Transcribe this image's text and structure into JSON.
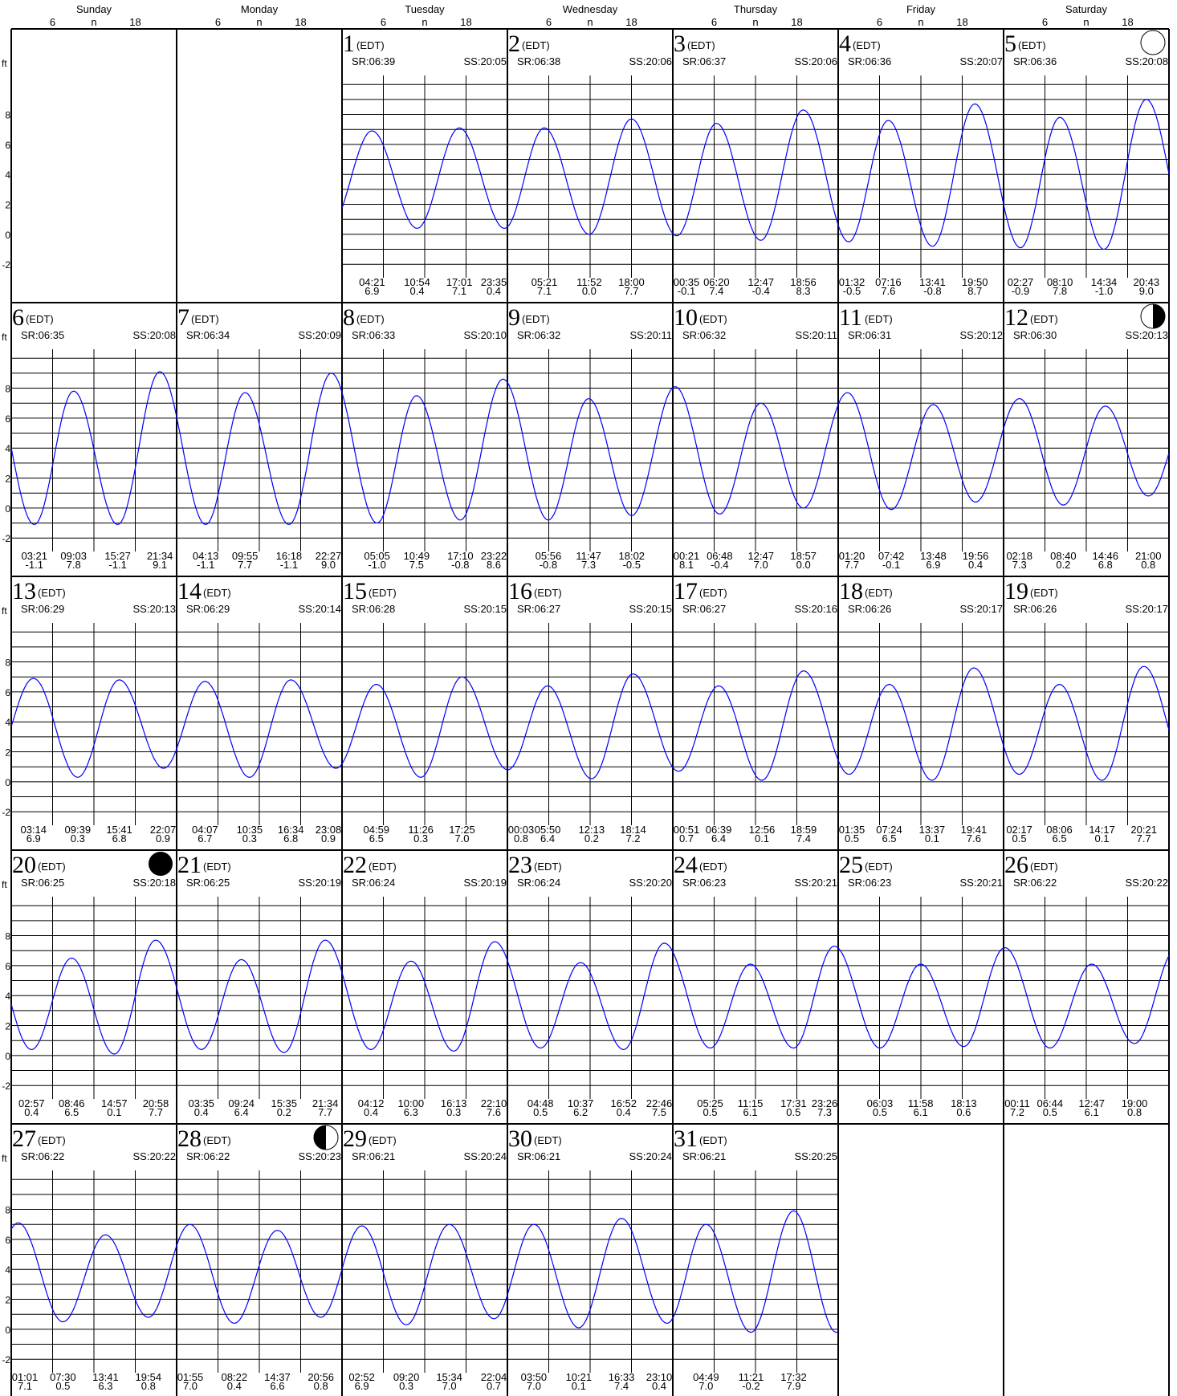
{
  "weekdays": [
    "Sunday",
    "Monday",
    "Tuesday",
    "Wednesday",
    "Thursday",
    "Friday",
    "Saturday"
  ],
  "hour_ticks": [
    "6",
    "n",
    "18"
  ],
  "units": "ft",
  "y_ticks": [
    "8",
    "6",
    "4",
    "2",
    "0",
    "-2"
  ],
  "colors": {
    "curve": "#0000ff",
    "grid": "#000000",
    "moon": "#000000"
  },
  "chart_data": {
    "type": "line",
    "xlabel": "",
    "ylabel": "ft",
    "ylim": [
      -2,
      10
    ],
    "first_weekday_index": 2,
    "grid": true,
    "days": [
      {
        "day": "1",
        "tz": "(EDT)",
        "sr": "SR:06:39",
        "ss": "SS:20:05",
        "moon": "",
        "tides": [
          {
            "t": "04:21",
            "h": "6.9"
          },
          {
            "t": "10:54",
            "h": "0.4"
          },
          {
            "t": "17:01",
            "h": "7.1"
          },
          {
            "t": "23:35",
            "h": "0.4"
          }
        ]
      },
      {
        "day": "2",
        "tz": "(EDT)",
        "sr": "SR:06:38",
        "ss": "SS:20:06",
        "moon": "",
        "tides": [
          {
            "t": "05:21",
            "h": "7.1"
          },
          {
            "t": "11:52",
            "h": "0.0"
          },
          {
            "t": "18:00",
            "h": "7.7"
          }
        ]
      },
      {
        "day": "3",
        "tz": "(EDT)",
        "sr": "SR:06:37",
        "ss": "SS:20:06",
        "moon": "",
        "tides": [
          {
            "t": "00:35",
            "h": "-0.1"
          },
          {
            "t": "06:20",
            "h": "7.4"
          },
          {
            "t": "12:47",
            "h": "-0.4"
          },
          {
            "t": "18:56",
            "h": "8.3"
          }
        ]
      },
      {
        "day": "4",
        "tz": "(EDT)",
        "sr": "SR:06:36",
        "ss": "SS:20:07",
        "moon": "",
        "tides": [
          {
            "t": "01:32",
            "h": "-0.5"
          },
          {
            "t": "07:16",
            "h": "7.6"
          },
          {
            "t": "13:41",
            "h": "-0.8"
          },
          {
            "t": "19:50",
            "h": "8.7"
          }
        ]
      },
      {
        "day": "5",
        "tz": "(EDT)",
        "sr": "SR:06:36",
        "ss": "SS:20:08",
        "moon": "full",
        "tides": [
          {
            "t": "02:27",
            "h": "-0.9"
          },
          {
            "t": "08:10",
            "h": "7.8"
          },
          {
            "t": "14:34",
            "h": "-1.0"
          },
          {
            "t": "20:43",
            "h": "9.0"
          }
        ]
      },
      {
        "day": "6",
        "tz": "(EDT)",
        "sr": "SR:06:35",
        "ss": "SS:20:08",
        "moon": "",
        "tides": [
          {
            "t": "03:21",
            "h": "-1.1"
          },
          {
            "t": "09:03",
            "h": "7.8"
          },
          {
            "t": "15:27",
            "h": "-1.1"
          },
          {
            "t": "21:34",
            "h": "9.1"
          }
        ]
      },
      {
        "day": "7",
        "tz": "(EDT)",
        "sr": "SR:06:34",
        "ss": "SS:20:09",
        "moon": "",
        "tides": [
          {
            "t": "04:13",
            "h": "-1.1"
          },
          {
            "t": "09:55",
            "h": "7.7"
          },
          {
            "t": "16:18",
            "h": "-1.1"
          },
          {
            "t": "22:27",
            "h": "9.0"
          }
        ]
      },
      {
        "day": "8",
        "tz": "(EDT)",
        "sr": "SR:06:33",
        "ss": "SS:20:10",
        "moon": "",
        "tides": [
          {
            "t": "05:05",
            "h": "-1.0"
          },
          {
            "t": "10:49",
            "h": "7.5"
          },
          {
            "t": "17:10",
            "h": "-0.8"
          },
          {
            "t": "23:22",
            "h": "8.6"
          }
        ]
      },
      {
        "day": "9",
        "tz": "(EDT)",
        "sr": "SR:06:32",
        "ss": "SS:20:11",
        "moon": "",
        "tides": [
          {
            "t": "05:56",
            "h": "-0.8"
          },
          {
            "t": "11:47",
            "h": "7.3"
          },
          {
            "t": "18:02",
            "h": "-0.5"
          }
        ]
      },
      {
        "day": "10",
        "tz": "(EDT)",
        "sr": "SR:06:32",
        "ss": "SS:20:11",
        "moon": "",
        "tides": [
          {
            "t": "00:21",
            "h": "8.1"
          },
          {
            "t": "06:48",
            "h": "-0.4"
          },
          {
            "t": "12:47",
            "h": "7.0"
          },
          {
            "t": "18:57",
            "h": "0.0"
          }
        ]
      },
      {
        "day": "11",
        "tz": "(EDT)",
        "sr": "SR:06:31",
        "ss": "SS:20:12",
        "moon": "",
        "tides": [
          {
            "t": "01:20",
            "h": "7.7"
          },
          {
            "t": "07:42",
            "h": "-0.1"
          },
          {
            "t": "13:48",
            "h": "6.9"
          },
          {
            "t": "19:56",
            "h": "0.4"
          }
        ]
      },
      {
        "day": "12",
        "tz": "(EDT)",
        "sr": "SR:06:30",
        "ss": "SS:20:13",
        "moon": "last",
        "tides": [
          {
            "t": "02:18",
            "h": "7.3"
          },
          {
            "t": "08:40",
            "h": "0.2"
          },
          {
            "t": "14:46",
            "h": "6.8"
          },
          {
            "t": "21:00",
            "h": "0.8"
          }
        ]
      },
      {
        "day": "13",
        "tz": "(EDT)",
        "sr": "SR:06:29",
        "ss": "SS:20:13",
        "moon": "",
        "tides": [
          {
            "t": "03:14",
            "h": "6.9"
          },
          {
            "t": "09:39",
            "h": "0.3"
          },
          {
            "t": "15:41",
            "h": "6.8"
          },
          {
            "t": "22:07",
            "h": "0.9"
          }
        ]
      },
      {
        "day": "14",
        "tz": "(EDT)",
        "sr": "SR:06:29",
        "ss": "SS:20:14",
        "moon": "",
        "tides": [
          {
            "t": "04:07",
            "h": "6.7"
          },
          {
            "t": "10:35",
            "h": "0.3"
          },
          {
            "t": "16:34",
            "h": "6.8"
          },
          {
            "t": "23:08",
            "h": "0.9"
          }
        ]
      },
      {
        "day": "15",
        "tz": "(EDT)",
        "sr": "SR:06:28",
        "ss": "SS:20:15",
        "moon": "",
        "tides": [
          {
            "t": "04:59",
            "h": "6.5"
          },
          {
            "t": "11:26",
            "h": "0.3"
          },
          {
            "t": "17:25",
            "h": "7.0"
          }
        ]
      },
      {
        "day": "16",
        "tz": "(EDT)",
        "sr": "SR:06:27",
        "ss": "SS:20:15",
        "moon": "",
        "tides": [
          {
            "t": "00:03",
            "h": "0.8"
          },
          {
            "t": "05:50",
            "h": "6.4"
          },
          {
            "t": "12:13",
            "h": "0.2"
          },
          {
            "t": "18:14",
            "h": "7.2"
          }
        ]
      },
      {
        "day": "17",
        "tz": "(EDT)",
        "sr": "SR:06:27",
        "ss": "SS:20:16",
        "moon": "",
        "tides": [
          {
            "t": "00:51",
            "h": "0.7"
          },
          {
            "t": "06:39",
            "h": "6.4"
          },
          {
            "t": "12:56",
            "h": "0.1"
          },
          {
            "t": "18:59",
            "h": "7.4"
          }
        ]
      },
      {
        "day": "18",
        "tz": "(EDT)",
        "sr": "SR:06:26",
        "ss": "SS:20:17",
        "moon": "",
        "tides": [
          {
            "t": "01:35",
            "h": "0.5"
          },
          {
            "t": "07:24",
            "h": "6.5"
          },
          {
            "t": "13:37",
            "h": "0.1"
          },
          {
            "t": "19:41",
            "h": "7.6"
          }
        ]
      },
      {
        "day": "19",
        "tz": "(EDT)",
        "sr": "SR:06:26",
        "ss": "SS:20:17",
        "moon": "",
        "tides": [
          {
            "t": "02:17",
            "h": "0.5"
          },
          {
            "t": "08:06",
            "h": "6.5"
          },
          {
            "t": "14:17",
            "h": "0.1"
          },
          {
            "t": "20:21",
            "h": "7.7"
          }
        ]
      },
      {
        "day": "20",
        "tz": "(EDT)",
        "sr": "SR:06:25",
        "ss": "SS:20:18",
        "moon": "new",
        "tides": [
          {
            "t": "02:57",
            "h": "0.4"
          },
          {
            "t": "08:46",
            "h": "6.5"
          },
          {
            "t": "14:57",
            "h": "0.1"
          },
          {
            "t": "20:58",
            "h": "7.7"
          }
        ]
      },
      {
        "day": "21",
        "tz": "(EDT)",
        "sr": "SR:06:25",
        "ss": "SS:20:19",
        "moon": "",
        "tides": [
          {
            "t": "03:35",
            "h": "0.4"
          },
          {
            "t": "09:24",
            "h": "6.4"
          },
          {
            "t": "15:35",
            "h": "0.2"
          },
          {
            "t": "21:34",
            "h": "7.7"
          }
        ]
      },
      {
        "day": "22",
        "tz": "(EDT)",
        "sr": "SR:06:24",
        "ss": "SS:20:19",
        "moon": "",
        "tides": [
          {
            "t": "04:12",
            "h": "0.4"
          },
          {
            "t": "10:00",
            "h": "6.3"
          },
          {
            "t": "16:13",
            "h": "0.3"
          },
          {
            "t": "22:10",
            "h": "7.6"
          }
        ]
      },
      {
        "day": "23",
        "tz": "(EDT)",
        "sr": "SR:06:24",
        "ss": "SS:20:20",
        "moon": "",
        "tides": [
          {
            "t": "04:48",
            "h": "0.5"
          },
          {
            "t": "10:37",
            "h": "6.2"
          },
          {
            "t": "16:52",
            "h": "0.4"
          },
          {
            "t": "22:46",
            "h": "7.5"
          }
        ]
      },
      {
        "day": "24",
        "tz": "(EDT)",
        "sr": "SR:06:23",
        "ss": "SS:20:21",
        "moon": "",
        "tides": [
          {
            "t": "05:25",
            "h": "0.5"
          },
          {
            "t": "11:15",
            "h": "6.1"
          },
          {
            "t": "17:31",
            "h": "0.5"
          },
          {
            "t": "23:26",
            "h": "7.3"
          }
        ]
      },
      {
        "day": "25",
        "tz": "(EDT)",
        "sr": "SR:06:23",
        "ss": "SS:20:21",
        "moon": "",
        "tides": [
          {
            "t": "06:03",
            "h": "0.5"
          },
          {
            "t": "11:58",
            "h": "6.1"
          },
          {
            "t": "18:13",
            "h": "0.6"
          }
        ]
      },
      {
        "day": "26",
        "tz": "(EDT)",
        "sr": "SR:06:22",
        "ss": "SS:20:22",
        "moon": "",
        "tides": [
          {
            "t": "00:11",
            "h": "7.2"
          },
          {
            "t": "06:44",
            "h": "0.5"
          },
          {
            "t": "12:47",
            "h": "6.1"
          },
          {
            "t": "19:00",
            "h": "0.8"
          }
        ]
      },
      {
        "day": "27",
        "tz": "(EDT)",
        "sr": "SR:06:22",
        "ss": "SS:20:22",
        "moon": "",
        "tides": [
          {
            "t": "01:01",
            "h": "7.1"
          },
          {
            "t": "07:30",
            "h": "0.5"
          },
          {
            "t": "13:41",
            "h": "6.3"
          },
          {
            "t": "19:54",
            "h": "0.8"
          }
        ]
      },
      {
        "day": "28",
        "tz": "(EDT)",
        "sr": "SR:06:22",
        "ss": "SS:20:23",
        "moon": "first",
        "tides": [
          {
            "t": "01:55",
            "h": "7.0"
          },
          {
            "t": "08:22",
            "h": "0.4"
          },
          {
            "t": "14:37",
            "h": "6.6"
          },
          {
            "t": "20:56",
            "h": "0.8"
          }
        ]
      },
      {
        "day": "29",
        "tz": "(EDT)",
        "sr": "SR:06:21",
        "ss": "SS:20:24",
        "moon": "",
        "tides": [
          {
            "t": "02:52",
            "h": "6.9"
          },
          {
            "t": "09:20",
            "h": "0.3"
          },
          {
            "t": "15:34",
            "h": "7.0"
          },
          {
            "t": "22:04",
            "h": "0.7"
          }
        ]
      },
      {
        "day": "30",
        "tz": "(EDT)",
        "sr": "SR:06:21",
        "ss": "SS:20:24",
        "moon": "",
        "tides": [
          {
            "t": "03:50",
            "h": "7.0"
          },
          {
            "t": "10:21",
            "h": "0.1"
          },
          {
            "t": "16:33",
            "h": "7.4"
          },
          {
            "t": "23:10",
            "h": "0.4"
          }
        ]
      },
      {
        "day": "31",
        "tz": "(EDT)",
        "sr": "SR:06:21",
        "ss": "SS:20:25",
        "moon": "",
        "tides": [
          {
            "t": "04:49",
            "h": "7.0"
          },
          {
            "t": "11:21",
            "h": "-0.2"
          },
          {
            "t": "17:32",
            "h": "7.9"
          }
        ]
      }
    ]
  }
}
